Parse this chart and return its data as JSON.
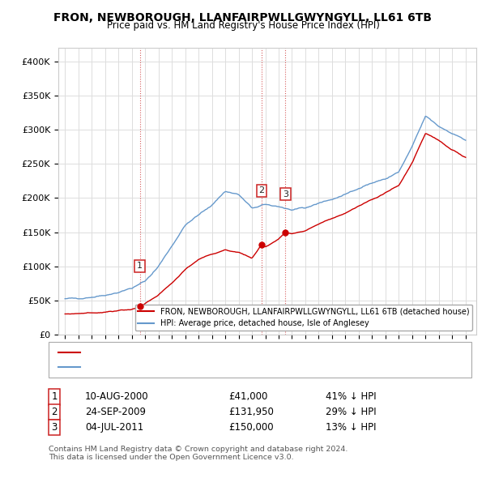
{
  "title": "FRON, NEWBOROUGH, LLANFAIRPWLLGWYNGYLL, LL61 6TB",
  "subtitle": "Price paid vs. HM Land Registry's House Price Index (HPI)",
  "legend_label_red": "FRON, NEWBOROUGH, LLANFAIRPWLLGWYNGYLL, LL61 6TB (detached house)",
  "legend_label_blue": "HPI: Average price, detached house, Isle of Anglesey",
  "footnote": "Contains HM Land Registry data © Crown copyright and database right 2024.\nThis data is licensed under the Open Government Licence v3.0.",
  "transactions": [
    {
      "num": 1,
      "date": "10-AUG-2000",
      "price": 41000,
      "hpi_diff": "41% ↓ HPI",
      "x": 2000.61
    },
    {
      "num": 2,
      "date": "24-SEP-2009",
      "price": 131950,
      "hpi_diff": "29% ↓ HPI",
      "x": 2009.73
    },
    {
      "num": 3,
      "date": "04-JUL-2011",
      "price": 150000,
      "hpi_diff": "13% ↓ HPI",
      "x": 2011.5
    }
  ],
  "ylim": [
    0,
    420000
  ],
  "yticks": [
    0,
    50000,
    100000,
    150000,
    200000,
    250000,
    300000,
    350000,
    400000
  ],
  "ytick_labels": [
    "£0",
    "£50K",
    "£100K",
    "£150K",
    "£200K",
    "£250K",
    "£300K",
    "£350K",
    "£400K"
  ],
  "color_red": "#cc0000",
  "color_blue": "#6699cc",
  "background_color": "#ffffff",
  "grid_color": "#dddddd",
  "hpi_keypoints": [
    [
      1995.0,
      52000
    ],
    [
      1996.0,
      53500
    ],
    [
      1997.0,
      55000
    ],
    [
      1998.0,
      58000
    ],
    [
      1999.0,
      62000
    ],
    [
      2000.0,
      68000
    ],
    [
      2001.0,
      78000
    ],
    [
      2002.0,
      100000
    ],
    [
      2003.0,
      130000
    ],
    [
      2004.0,
      160000
    ],
    [
      2005.0,
      175000
    ],
    [
      2006.0,
      190000
    ],
    [
      2007.0,
      210000
    ],
    [
      2008.0,
      205000
    ],
    [
      2009.0,
      185000
    ],
    [
      2010.0,
      190000
    ],
    [
      2011.0,
      188000
    ],
    [
      2012.0,
      182000
    ],
    [
      2013.0,
      185000
    ],
    [
      2014.0,
      193000
    ],
    [
      2015.0,
      198000
    ],
    [
      2016.0,
      205000
    ],
    [
      2017.0,
      215000
    ],
    [
      2018.0,
      222000
    ],
    [
      2019.0,
      228000
    ],
    [
      2020.0,
      238000
    ],
    [
      2021.0,
      275000
    ],
    [
      2022.0,
      320000
    ],
    [
      2023.0,
      305000
    ],
    [
      2024.0,
      295000
    ],
    [
      2025.0,
      285000
    ]
  ],
  "red_keypoints": [
    [
      1995.0,
      30000
    ],
    [
      1996.0,
      31000
    ],
    [
      1997.0,
      32000
    ],
    [
      1998.0,
      33000
    ],
    [
      1999.0,
      35000
    ],
    [
      2000.0,
      37000
    ],
    [
      2000.61,
      41000
    ],
    [
      2001.0,
      45000
    ],
    [
      2002.0,
      58000
    ],
    [
      2003.0,
      75000
    ],
    [
      2004.0,
      95000
    ],
    [
      2005.0,
      110000
    ],
    [
      2006.0,
      118000
    ],
    [
      2007.0,
      125000
    ],
    [
      2008.0,
      120000
    ],
    [
      2009.0,
      112000
    ],
    [
      2009.73,
      131950
    ],
    [
      2010.0,
      128000
    ],
    [
      2011.0,
      140000
    ],
    [
      2011.5,
      150000
    ],
    [
      2012.0,
      148000
    ],
    [
      2013.0,
      152000
    ],
    [
      2014.0,
      162000
    ],
    [
      2015.0,
      170000
    ],
    [
      2016.0,
      178000
    ],
    [
      2017.0,
      188000
    ],
    [
      2018.0,
      198000
    ],
    [
      2019.0,
      208000
    ],
    [
      2020.0,
      218000
    ],
    [
      2021.0,
      252000
    ],
    [
      2022.0,
      295000
    ],
    [
      2023.0,
      285000
    ],
    [
      2024.0,
      270000
    ],
    [
      2025.0,
      260000
    ]
  ]
}
